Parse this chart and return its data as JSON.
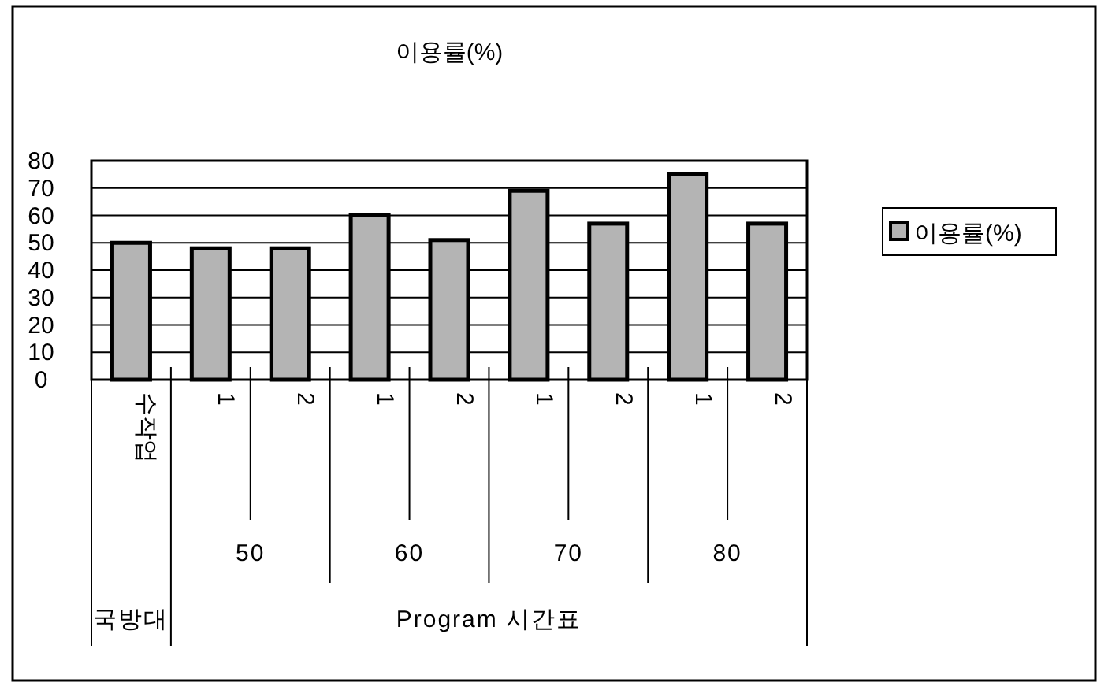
{
  "chart_data": {
    "type": "bar",
    "title": "이용률(%)",
    "categories": [
      "수작업",
      "1",
      "2",
      "1",
      "2",
      "1",
      "2",
      "1",
      "2"
    ],
    "series": [
      {
        "name": "이용률(%)",
        "color": "#b4b4b4",
        "values": [
          50,
          48,
          48,
          60,
          51,
          69,
          57,
          75,
          57
        ]
      }
    ],
    "ylim": [
      0,
      80
    ],
    "yticks": [
      0,
      10,
      20,
      30,
      40,
      50,
      60,
      70,
      80
    ],
    "grid": "y",
    "legend": "right",
    "annotations": [
      "50",
      "60",
      "70",
      "80",
      "국방대",
      "Program 시간표"
    ]
  }
}
